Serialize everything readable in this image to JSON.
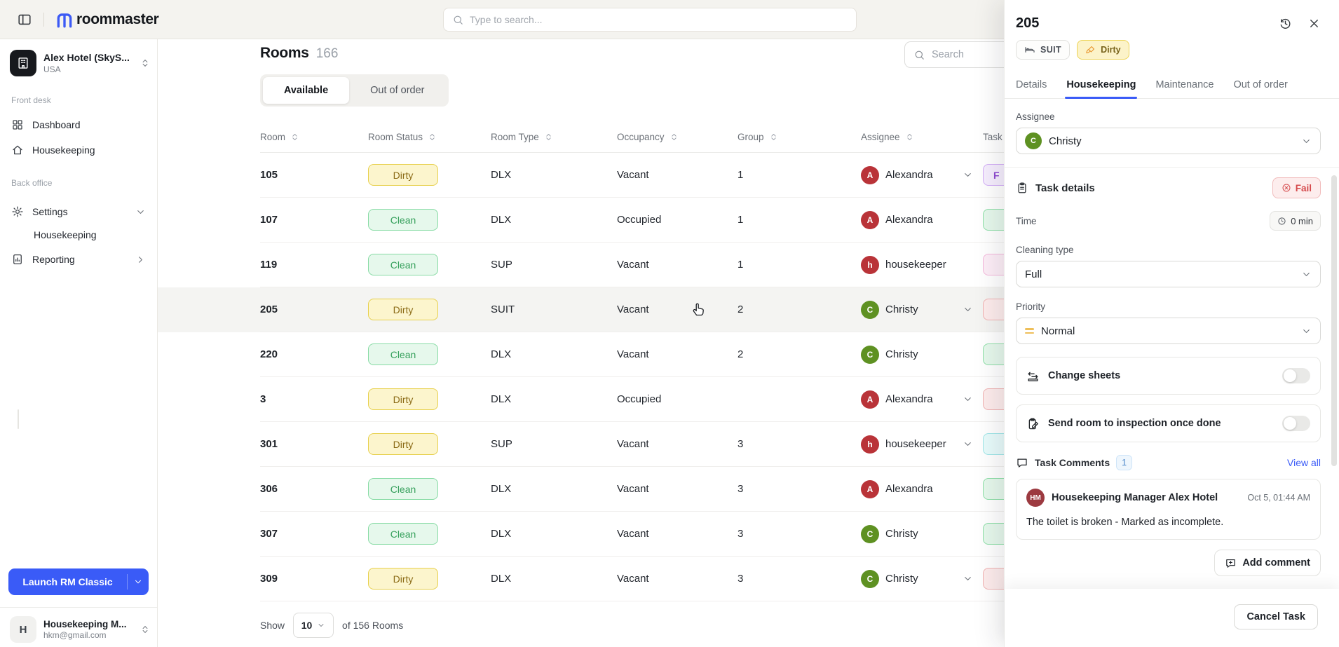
{
  "topbar": {
    "logo_text": "roommaster",
    "search_placeholder": "Type to search..."
  },
  "sidebar": {
    "hotel": {
      "name": "Alex Hotel (SkyS...",
      "country": "USA"
    },
    "front_desk_label": "Front desk",
    "back_office_label": "Back office",
    "items": {
      "dashboard": "Dashboard",
      "housekeeping": "Housekeeping",
      "settings": "Settings",
      "settings_sub_housekeeping": "Housekeeping",
      "reporting": "Reporting"
    },
    "launch_button": "Launch RM Classic",
    "user": {
      "initial": "H",
      "name": "Housekeeping M...",
      "email": "hkm@gmail.com"
    }
  },
  "main": {
    "title": "Rooms",
    "count": "166",
    "tabs": [
      "Available",
      "Out of order"
    ],
    "active_tab": "Available",
    "search_placeholder": "Search",
    "table": {
      "columns": [
        "Room",
        "Room Status",
        "Room Type",
        "Occupancy",
        "Group",
        "Assignee",
        "Task"
      ],
      "rows": [
        {
          "room": "105",
          "status": "Dirty",
          "type": "DLX",
          "occupancy": "Vacant",
          "group": "1",
          "assignee": "Alexandra",
          "avatar": "A",
          "avatar_color": "red",
          "expand_chevron": true,
          "task_color": "purple",
          "task_label": "F",
          "highlighted": false
        },
        {
          "room": "107",
          "status": "Clean",
          "type": "DLX",
          "occupancy": "Occupied",
          "group": "1",
          "assignee": "Alexandra",
          "avatar": "A",
          "avatar_color": "red",
          "expand_chevron": false,
          "task_color": "green",
          "task_label": "",
          "highlighted": false
        },
        {
          "room": "119",
          "status": "Clean",
          "type": "SUP",
          "occupancy": "Vacant",
          "group": "1",
          "assignee": "housekeeper",
          "avatar": "h",
          "avatar_color": "red",
          "expand_chevron": false,
          "task_color": "pink",
          "task_label": "",
          "highlighted": false
        },
        {
          "room": "205",
          "status": "Dirty",
          "type": "SUIT",
          "occupancy": "Vacant",
          "group": "2",
          "assignee": "Christy",
          "avatar": "C",
          "avatar_color": "green",
          "expand_chevron": true,
          "task_color": "red",
          "task_label": "",
          "highlighted": true
        },
        {
          "room": "220",
          "status": "Clean",
          "type": "DLX",
          "occupancy": "Vacant",
          "group": "2",
          "assignee": "Christy",
          "avatar": "C",
          "avatar_color": "green",
          "expand_chevron": false,
          "task_color": "green",
          "task_label": "",
          "highlighted": false
        },
        {
          "room": "3",
          "status": "Dirty",
          "type": "DLX",
          "occupancy": "Occupied",
          "group": "",
          "assignee": "Alexandra",
          "avatar": "A",
          "avatar_color": "red",
          "expand_chevron": true,
          "task_color": "red",
          "task_label": "",
          "highlighted": false
        },
        {
          "room": "301",
          "status": "Dirty",
          "type": "SUP",
          "occupancy": "Vacant",
          "group": "3",
          "assignee": "housekeeper",
          "avatar": "h",
          "avatar_color": "red",
          "expand_chevron": true,
          "task_color": "cyan",
          "task_label": "",
          "highlighted": false
        },
        {
          "room": "306",
          "status": "Clean",
          "type": "DLX",
          "occupancy": "Vacant",
          "group": "3",
          "assignee": "Alexandra",
          "avatar": "A",
          "avatar_color": "red",
          "expand_chevron": false,
          "task_color": "green",
          "task_label": "",
          "highlighted": false
        },
        {
          "room": "307",
          "status": "Clean",
          "type": "DLX",
          "occupancy": "Vacant",
          "group": "3",
          "assignee": "Christy",
          "avatar": "C",
          "avatar_color": "green",
          "expand_chevron": false,
          "task_color": "green",
          "task_label": "",
          "highlighted": false
        },
        {
          "room": "309",
          "status": "Dirty",
          "type": "DLX",
          "occupancy": "Vacant",
          "group": "3",
          "assignee": "Christy",
          "avatar": "C",
          "avatar_color": "green",
          "expand_chevron": true,
          "task_color": "red",
          "task_label": "",
          "highlighted": false
        }
      ]
    },
    "pagination": {
      "show_label": "Show",
      "page_size": "10",
      "total_label": "of 156 Rooms"
    }
  },
  "panel": {
    "title": "205",
    "badges": {
      "room_type": "SUIT",
      "status": "Dirty"
    },
    "tabs": [
      "Details",
      "Housekeeping",
      "Maintenance",
      "Out of order"
    ],
    "active_tab": "Housekeeping",
    "assignee": {
      "label": "Assignee",
      "value": "Christy",
      "initial": "C"
    },
    "task_details": {
      "label": "Task details",
      "fail_label": "Fail"
    },
    "time": {
      "label": "Time",
      "value": "0 min"
    },
    "cleaning_type": {
      "label": "Cleaning type",
      "value": "Full"
    },
    "priority": {
      "label": "Priority",
      "value": "Normal"
    },
    "toggles": {
      "change_sheets": "Change sheets",
      "send_inspection": "Send room to inspection once done"
    },
    "comments": {
      "label": "Task Comments",
      "count": "1",
      "view_all": "View all",
      "item": {
        "initials": "HM",
        "author": "Housekeeping Manager Alex Hotel",
        "timestamp": "Oct 5, 01:44 AM",
        "text": "The toilet is broken - Marked as incomplete."
      },
      "add_label": "Add comment"
    },
    "footer": {
      "cancel_label": "Cancel Task"
    }
  },
  "colors": {
    "accent_blue": "#3a5bf7",
    "dirty_bg": "#fcf5cd",
    "dirty_border": "#e7d04c",
    "dirty_text": "#8a6a15",
    "clean_bg": "#e6f8ec",
    "clean_border": "#87dba4",
    "clean_text": "#36a05c",
    "fail_red": "#d5494b",
    "avatar_red": "#b93338",
    "avatar_green": "#5e9122",
    "comment_avatar": "#9c3a40"
  }
}
